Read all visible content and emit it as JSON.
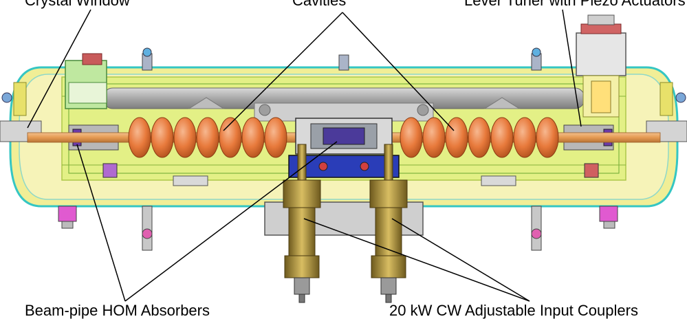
{
  "labels": {
    "top_left": "Crystal Window",
    "top_middle": "Cavities",
    "top_right": "Lever Tuner with Piezo Actuators",
    "bottom_left": "Beam-pipe HOM Absorbers",
    "bottom_right": "20 kW CW Adjustable Input Couplers"
  },
  "colors": {
    "cavity": "#e87a3c",
    "vessel_outline": "#35c6c3",
    "vacuum_vessel": "#f1ee96",
    "inner_frame": "#c8e05a",
    "support_blue": "#2a3db8",
    "coupler_brass": "#b79a3b",
    "leader_line": "#000000"
  }
}
